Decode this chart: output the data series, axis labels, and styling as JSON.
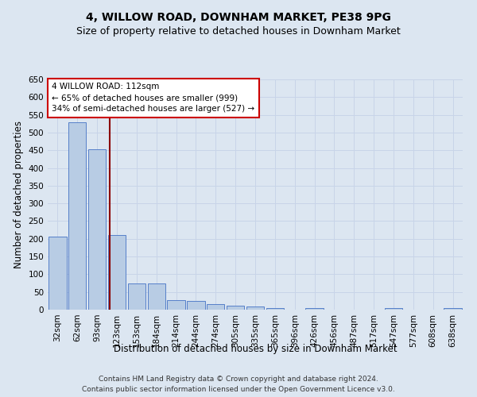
{
  "title": "4, WILLOW ROAD, DOWNHAM MARKET, PE38 9PG",
  "subtitle": "Size of property relative to detached houses in Downham Market",
  "xlabel": "Distribution of detached houses by size in Downham Market",
  "ylabel": "Number of detached properties",
  "footer_line1": "Contains HM Land Registry data © Crown copyright and database right 2024.",
  "footer_line2": "Contains public sector information licensed under the Open Government Licence v3.0.",
  "categories": [
    "32sqm",
    "62sqm",
    "93sqm",
    "123sqm",
    "153sqm",
    "184sqm",
    "214sqm",
    "244sqm",
    "274sqm",
    "305sqm",
    "335sqm",
    "365sqm",
    "396sqm",
    "426sqm",
    "456sqm",
    "487sqm",
    "517sqm",
    "547sqm",
    "577sqm",
    "608sqm",
    "638sqm"
  ],
  "values": [
    207,
    530,
    452,
    210,
    75,
    75,
    27,
    25,
    15,
    12,
    10,
    5,
    0,
    5,
    0,
    0,
    0,
    5,
    0,
    0,
    5
  ],
  "bar_color": "#b8cce4",
  "bar_edge_color": "#4472c4",
  "grid_color": "#c8d4e8",
  "background_color": "#dce6f1",
  "marker_bin_index": 3,
  "annotation_title": "4 WILLOW ROAD: 112sqm",
  "annotation_line2": "← 65% of detached houses are smaller (999)",
  "annotation_line3": "34% of semi-detached houses are larger (527) →",
  "ylim": [
    0,
    650
  ],
  "yticks": [
    0,
    50,
    100,
    150,
    200,
    250,
    300,
    350,
    400,
    450,
    500,
    550,
    600,
    650
  ],
  "title_fontsize": 10,
  "subtitle_fontsize": 9,
  "axis_label_fontsize": 8.5,
  "tick_fontsize": 7.5,
  "footer_fontsize": 6.5,
  "annotation_fontsize": 7.5
}
